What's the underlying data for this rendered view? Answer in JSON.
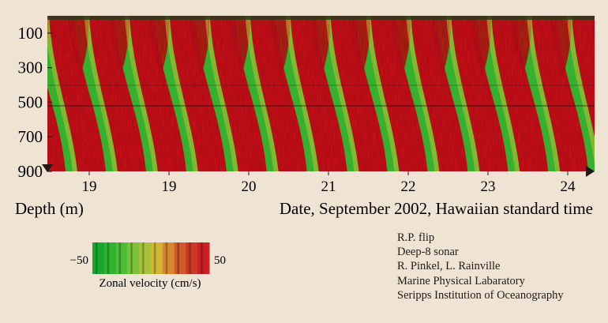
{
  "chart_data": {
    "type": "heatmap",
    "xlabel": "Date, September 2002, Hawaiian standard time",
    "ylabel": "Depth (m)",
    "x_ticks": [
      "19",
      "19",
      "20",
      "21",
      "22",
      "23",
      "24"
    ],
    "y_ticks": [
      100,
      300,
      500,
      700,
      900
    ],
    "ylim": [
      0,
      900
    ],
    "y_inverted": true,
    "colorbar": {
      "label": "Zonal velocity (cm/s)",
      "min_label": "−50",
      "max_label": "50",
      "range": [
        -50,
        50
      ],
      "colors": [
        "#16a82e",
        "#2fb331",
        "#4dbd35",
        "#79c23a",
        "#a7c23a",
        "#cfb636",
        "#d9872f",
        "#d15a29",
        "#cc3826",
        "#cc1f24"
      ]
    },
    "bands": {
      "description_pattern": "alternating red (eastward) and green (westward) bands sloping downward, about two per day",
      "period_px_fraction": 0.0735
    }
  },
  "credits": [
    "R.P. flip",
    "Deep-8 sonar",
    "R. Pinkel, L. Rainville",
    "Marine Physical Labaratory",
    "Seripps Institution of Oceanography"
  ],
  "colors": {
    "background": "#efe3d4",
    "red": "#c4191e",
    "green": "#33b02f",
    "yellow": "#c9c73a"
  }
}
